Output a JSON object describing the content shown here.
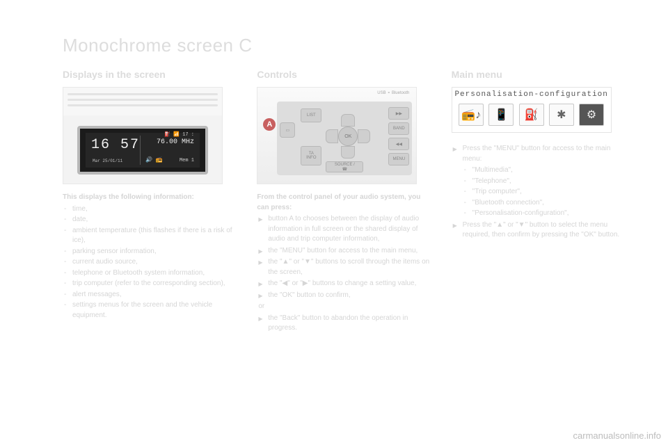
{
  "title": "Monochrome screen C",
  "watermark": "carmanualsonline.info",
  "colors": {
    "page_bg": "#ffffff",
    "text_faded": "#d5d5d5",
    "heading_faded": "#dcdcdc",
    "lcd_bg": "#262626",
    "lcd_frame": "#b8b8b8",
    "callout_badge": "#c86060",
    "button_face": "#cfcfcf",
    "button_border": "#b8b8b8",
    "menu_cell_border": "#c8c8c8",
    "menu_active_bg": "#555555"
  },
  "col1": {
    "heading": "Displays in the screen",
    "lcd": {
      "clock": "16 57",
      "date_line": "Mar 25/01/11",
      "status_icons": "⛽  📶 17 :",
      "frequency": "76.00 MHz",
      "bottom_icons": "🔊  📻",
      "memory": "Mem 1"
    },
    "intro": "This displays the following information:",
    "items": [
      "time,",
      "date,",
      "ambient temperature (this flashes if there is a risk of ice),",
      "parking sensor information,",
      "current audio source,",
      "telephone or Bluetooth system information,",
      "trip computer (refer to the corresponding section),",
      "alert messages,",
      "settings menus for the screen and the vehicle equipment."
    ]
  },
  "col2": {
    "heading": "Controls",
    "callout": "A",
    "top_labels": "USB        ⚬ Bluetooth",
    "buttons": {
      "row_left_top": "LIST",
      "row_left_bottom": "TA\nINFO",
      "row_mid_bottom": "SOURCE /\n☎",
      "right_top": "▶▶",
      "right_mid": "BAND",
      "right_low": "◀◀",
      "right_bottom": "MENU",
      "ok": "OK"
    },
    "intro": "From the control panel of your audio system, you can press:",
    "items": [
      "button A to chooses between the display of audio information in full screen or the shared display of audio and trip computer information,",
      "the \"MENU\" button for access to the main menu,",
      "the \"▲\" or \"▼\" buttons to scroll through the items on the screen,",
      "the \"◀\" or \"▶\" buttons to change a setting value,",
      "the \"OK\" button to confirm,",
      "or",
      "the \"Back\" button to abandon the operation in progress."
    ]
  },
  "col3": {
    "heading": "Main menu",
    "menu_title": "Personalisation-configuration",
    "menu_icons": [
      "📻♪",
      "📱",
      "⛽",
      "✱",
      "⚙"
    ],
    "menu_active_index": 4,
    "items": [
      {
        "text": "Press the \"MENU\" button for access to the main menu:",
        "sub": [
          "\"Multimedia\",",
          "\"Telephone\",",
          "\"Trip computer\",",
          "\"Bluetooth connection\",",
          "\"Personalisation-configuration\","
        ]
      },
      {
        "text": "Press the \"▲\" or \"▼\" button to select the menu required, then confirm by pressing the \"OK\" button."
      }
    ]
  }
}
